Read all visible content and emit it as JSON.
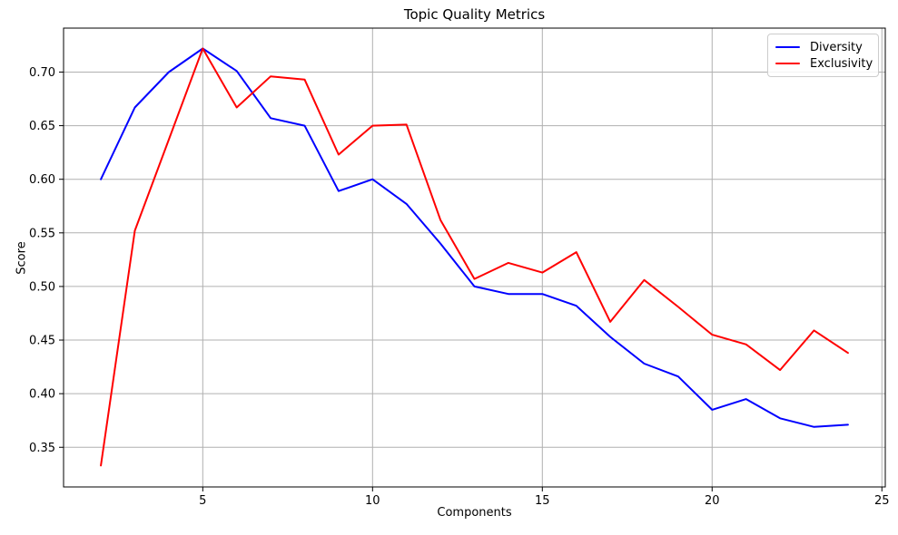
{
  "title": "Topic Quality Metrics",
  "chart_data": {
    "type": "line",
    "title": "Topic Quality Metrics",
    "xlabel": "Components",
    "ylabel": "Score",
    "x": [
      2,
      3,
      4,
      5,
      6,
      7,
      8,
      9,
      10,
      11,
      12,
      13,
      14,
      15,
      16,
      17,
      18,
      19,
      20,
      21,
      22,
      23,
      24
    ],
    "series": [
      {
        "name": "Diversity",
        "color": "#0000ff",
        "values": [
          0.6,
          0.667,
          0.7,
          0.722,
          0.701,
          0.657,
          0.65,
          0.589,
          0.6,
          0.577,
          0.54,
          0.5,
          0.493,
          0.493,
          0.482,
          0.453,
          0.428,
          0.416,
          0.385,
          0.395,
          0.377,
          0.369,
          0.371
        ]
      },
      {
        "name": "Exclusivity",
        "color": "#ff0000",
        "values": [
          0.333,
          0.552,
          0.637,
          0.722,
          0.667,
          0.696,
          0.693,
          0.623,
          0.65,
          0.651,
          0.562,
          0.507,
          0.522,
          0.513,
          0.532,
          0.467,
          0.506,
          0.481,
          0.455,
          0.446,
          0.422,
          0.459,
          0.438
        ]
      }
    ],
    "xlim": [
      0.9,
      25.1
    ],
    "ylim": [
      0.313,
      0.741
    ],
    "xticks": {
      "values": [
        5,
        10,
        15,
        20,
        25
      ],
      "labels": [
        "5",
        "10",
        "15",
        "20",
        "25"
      ]
    },
    "yticks": {
      "values": [
        0.35,
        0.4,
        0.45,
        0.5,
        0.55,
        0.6,
        0.65,
        0.7
      ],
      "labels": [
        "0.35",
        "0.40",
        "0.45",
        "0.50",
        "0.55",
        "0.60",
        "0.65",
        "0.70"
      ]
    },
    "grid": true,
    "grid_color": "#b0b0b0",
    "axis_color": "#000000",
    "background": "#ffffff",
    "legend_position": "upper right"
  },
  "legend": {
    "items": [
      {
        "label": "Diversity",
        "color": "#0000ff"
      },
      {
        "label": "Exclusivity",
        "color": "#ff0000"
      }
    ]
  }
}
